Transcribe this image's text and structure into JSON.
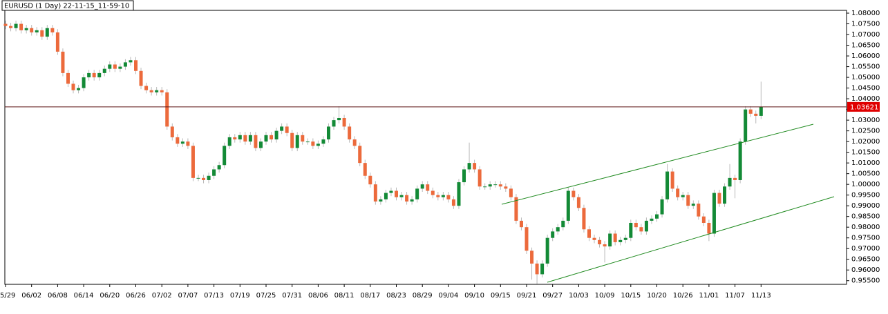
{
  "chart_data": {
    "type": "candlestick",
    "title": "EURUSD (1 Day) 22-11-15_11-59-10",
    "up_color": "#138a36",
    "down_color": "#ec6a3c",
    "wick_color": "#b8b8b8",
    "last_price": 1.03621,
    "last_price_color": "#e00000",
    "ylim": [
      0.9533,
      1.0813
    ],
    "yticks": [
      {
        "value": 0.955,
        "label": "0.95500"
      },
      {
        "value": 0.96,
        "label": "0.96000"
      },
      {
        "value": 0.965,
        "label": "0.96500"
      },
      {
        "value": 0.97,
        "label": "0.97000"
      },
      {
        "value": 0.975,
        "label": "0.97500"
      },
      {
        "value": 0.98,
        "label": "0.98000"
      },
      {
        "value": 0.985,
        "label": "0.98500"
      },
      {
        "value": 0.99,
        "label": "0.99000"
      },
      {
        "value": 0.995,
        "label": "0.99500"
      },
      {
        "value": 1.0,
        "label": "1.00000"
      },
      {
        "value": 1.005,
        "label": "1.00500"
      },
      {
        "value": 1.01,
        "label": "1.01000"
      },
      {
        "value": 1.015,
        "label": "1.01500"
      },
      {
        "value": 1.02,
        "label": "1.02000"
      },
      {
        "value": 1.025,
        "label": "1.02500"
      },
      {
        "value": 1.03,
        "label": "1.03000"
      },
      {
        "value": 1.035,
        "label": "1.03500"
      },
      {
        "value": 1.04,
        "label": "1.04000"
      },
      {
        "value": 1.045,
        "label": "1.04500"
      },
      {
        "value": 1.05,
        "label": "1.05000"
      },
      {
        "value": 1.055,
        "label": "1.05500"
      },
      {
        "value": 1.06,
        "label": "1.06000"
      },
      {
        "value": 1.065,
        "label": "1.06500"
      },
      {
        "value": 1.07,
        "label": "1.07000"
      },
      {
        "value": 1.075,
        "label": "1.07500"
      },
      {
        "value": 1.08,
        "label": "1.08000"
      }
    ],
    "categories": [
      "05/29",
      null,
      null,
      null,
      null,
      "06/02",
      null,
      null,
      null,
      null,
      "06/08",
      null,
      null,
      null,
      null,
      "06/14",
      null,
      null,
      null,
      null,
      "06/20",
      null,
      null,
      null,
      null,
      "06/26",
      null,
      null,
      null,
      null,
      "07/02",
      null,
      null,
      null,
      null,
      "07/07",
      null,
      null,
      null,
      null,
      "07/13",
      null,
      null,
      null,
      null,
      "07/19",
      null,
      null,
      null,
      null,
      "07/25",
      null,
      null,
      null,
      null,
      "07/31",
      null,
      null,
      null,
      null,
      "08/06",
      null,
      null,
      null,
      null,
      "08/11",
      null,
      null,
      null,
      null,
      "08/17",
      null,
      null,
      null,
      null,
      "08/23",
      null,
      null,
      null,
      null,
      "08/29",
      null,
      null,
      null,
      null,
      "09/04",
      null,
      null,
      null,
      null,
      "09/10",
      null,
      null,
      null,
      null,
      "09/15",
      null,
      null,
      null,
      null,
      "09/21",
      null,
      null,
      null,
      null,
      "09/27",
      null,
      null,
      null,
      null,
      "10/03",
      null,
      null,
      null,
      null,
      "10/09",
      null,
      null,
      null,
      null,
      "10/15",
      null,
      null,
      null,
      null,
      "10/20",
      null,
      null,
      null,
      null,
      "10/26",
      null,
      null,
      null,
      null,
      "11/01",
      null,
      null,
      null,
      null,
      "11/07",
      null,
      null,
      null,
      null,
      "11/13"
    ],
    "open": [
      1.075,
      1.074,
      1.073,
      1.075,
      1.072,
      1.073,
      1.071,
      1.072,
      1.069,
      1.073,
      1.071,
      1.062,
      1.052,
      1.047,
      1.044,
      1.045,
      1.05,
      1.052,
      1.05,
      1.052,
      1.054,
      1.056,
      1.054,
      1.055,
      1.057,
      1.058,
      1.053,
      1.046,
      1.044,
      1.043,
      1.044,
      1.043,
      1.027,
      1.022,
      1.019,
      1.02,
      1.018,
      1.003,
      1.003,
      1.002,
      1.004,
      1.007,
      1.009,
      1.018,
      1.022,
      1.021,
      1.023,
      1.02,
      1.023,
      1.017,
      1.02,
      1.023,
      1.021,
      1.025,
      1.027,
      1.024,
      1.017,
      1.023,
      1.02,
      1.02,
      1.018,
      1.019,
      1.021,
      1.027,
      1.03,
      1.031,
      1.027,
      1.021,
      1.018,
      1.01,
      1.004,
      1.0,
      0.992,
      0.993,
      0.996,
      0.997,
      0.994,
      0.995,
      0.992,
      0.993,
      0.998,
      1.0,
      0.997,
      0.995,
      0.994,
      0.995,
      0.993,
      0.99,
      1.001,
      1.007,
      1.01,
      1.007,
      0.999,
      0.999,
      1.0,
      1.0,
      0.999,
      0.998,
      0.994,
      0.983,
      0.98,
      0.969,
      0.963,
      0.958,
      0.963,
      0.975,
      0.978,
      0.98,
      0.983,
      0.997,
      0.994,
      0.989,
      0.979,
      0.975,
      0.974,
      0.972,
      0.971,
      0.977,
      0.973,
      0.974,
      0.975,
      0.982,
      0.98,
      0.978,
      0.983,
      0.984,
      0.986,
      0.993,
      1.006,
      0.998,
      0.994,
      0.995,
      0.99,
      0.991,
      0.985,
      0.982,
      0.977,
      0.996,
      0.991,
      0.999,
      1.003,
      1.002,
      1.02,
      1.035,
      1.033,
      1.032
    ],
    "high": [
      1.0765,
      1.0755,
      1.0765,
      1.0765,
      1.0745,
      1.0745,
      1.0735,
      1.0735,
      1.0745,
      1.0745,
      1.0725,
      1.0635,
      1.0535,
      1.0485,
      1.0465,
      1.0515,
      1.0535,
      1.0535,
      1.0535,
      1.0555,
      1.0575,
      1.0575,
      1.0565,
      1.0585,
      1.0595,
      1.0595,
      1.0545,
      1.0475,
      1.0455,
      1.0455,
      1.0455,
      1.0445,
      1.0285,
      1.0235,
      1.0215,
      1.0215,
      1.0195,
      1.0045,
      1.0045,
      1.0055,
      1.0085,
      1.0105,
      1.0195,
      1.0235,
      1.0235,
      1.0245,
      1.0245,
      1.0245,
      1.0245,
      1.0215,
      1.0245,
      1.0245,
      1.0265,
      1.0285,
      1.0285,
      1.0255,
      1.0245,
      1.0245,
      1.0215,
      1.0215,
      1.0205,
      1.0225,
      1.0285,
      1.0315,
      1.0365,
      1.0325,
      1.0285,
      1.0225,
      1.0195,
      1.0115,
      1.0055,
      1.0015,
      0.9945,
      0.9975,
      0.9985,
      0.9985,
      0.9965,
      0.9965,
      0.9945,
      0.9995,
      1.0015,
      1.0015,
      0.9985,
      0.9965,
      0.9965,
      0.9965,
      0.9945,
      1.0025,
      1.0085,
      1.0195,
      1.0115,
      1.0085,
      1.0005,
      1.0015,
      1.0015,
      1.0015,
      1.0005,
      0.9995,
      0.9955,
      0.9845,
      0.9815,
      0.9705,
      0.9645,
      0.9645,
      0.9765,
      0.9795,
      0.9815,
      0.9845,
      0.9985,
      0.9985,
      0.9955,
      0.9905,
      0.9805,
      0.9765,
      0.9755,
      0.9735,
      0.9785,
      0.9785,
      0.9755,
      0.9765,
      0.9835,
      0.9835,
      0.9815,
      0.9845,
      0.9855,
      0.9875,
      0.9945,
      1.0095,
      1.0075,
      0.9995,
      0.9965,
      0.9965,
      0.9925,
      0.9925,
      0.9865,
      0.9835,
      0.9975,
      0.9975,
      1.0005,
      1.0095,
      1.0045,
      1.0215,
      1.0365,
      1.0365,
      1.0345,
      1.048
    ],
    "low": [
      1.0725,
      1.0715,
      1.0715,
      1.0705,
      1.0705,
      1.0695,
      1.0695,
      1.0675,
      1.0675,
      1.0695,
      1.0605,
      1.0505,
      1.0455,
      1.0425,
      1.0425,
      1.0435,
      1.0485,
      1.0485,
      1.0485,
      1.0505,
      1.0525,
      1.0525,
      1.0525,
      1.0535,
      1.0555,
      1.0515,
      1.0445,
      1.0425,
      1.0415,
      1.0415,
      1.0415,
      1.0255,
      1.0205,
      1.0175,
      1.0175,
      1.0165,
      1.0015,
      1.0015,
      1.0005,
      1.0005,
      1.0025,
      1.0055,
      1.0075,
      1.0165,
      1.0195,
      1.0195,
      1.0185,
      1.0185,
      1.0155,
      1.0155,
      1.0185,
      1.0195,
      1.0195,
      1.0235,
      1.0225,
      1.0155,
      1.0155,
      1.0185,
      1.0185,
      1.0165,
      1.0165,
      1.0175,
      1.0195,
      1.0255,
      1.0285,
      1.0255,
      1.0195,
      1.0165,
      1.0085,
      1.0025,
      0.9985,
      0.9905,
      0.9905,
      0.9915,
      0.9945,
      0.9925,
      0.9925,
      0.9905,
      0.9905,
      0.9915,
      0.9965,
      0.9955,
      0.9935,
      0.9925,
      0.9925,
      0.9915,
      0.9885,
      0.9885,
      0.9995,
      1.0055,
      1.0055,
      0.9975,
      0.9975,
      0.9975,
      0.9985,
      0.9975,
      0.9965,
      0.9925,
      0.9815,
      0.9785,
      0.9675,
      0.9555,
      0.9535,
      0.9565,
      0.9615,
      0.9735,
      0.9765,
      0.9785,
      0.9815,
      0.9925,
      0.9875,
      0.9775,
      0.9735,
      0.9725,
      0.9705,
      0.9635,
      0.9695,
      0.9715,
      0.9715,
      0.9725,
      0.9735,
      0.9785,
      0.9765,
      0.9765,
      0.9815,
      0.9825,
      0.9845,
      0.9915,
      0.9965,
      0.9925,
      0.9925,
      0.9885,
      0.9885,
      0.9835,
      0.9805,
      0.9735,
      0.9755,
      0.9895,
      0.9895,
      0.9975,
      0.9935,
      1.0005,
      1.0185,
      1.0315,
      1.0285,
      1.0305
    ],
    "close": [
      1.074,
      1.073,
      1.075,
      1.072,
      1.073,
      1.071,
      1.072,
      1.069,
      1.073,
      1.071,
      1.062,
      1.052,
      1.047,
      1.044,
      1.045,
      1.05,
      1.052,
      1.05,
      1.052,
      1.054,
      1.056,
      1.054,
      1.055,
      1.057,
      1.058,
      1.053,
      1.046,
      1.044,
      1.043,
      1.044,
      1.043,
      1.027,
      1.022,
      1.019,
      1.02,
      1.018,
      1.003,
      1.003,
      1.002,
      1.004,
      1.007,
      1.009,
      1.018,
      1.022,
      1.021,
      1.023,
      1.02,
      1.023,
      1.017,
      1.02,
      1.023,
      1.021,
      1.025,
      1.027,
      1.024,
      1.017,
      1.023,
      1.02,
      1.02,
      1.018,
      1.019,
      1.021,
      1.027,
      1.03,
      1.031,
      1.027,
      1.021,
      1.018,
      1.01,
      1.004,
      1.0,
      0.992,
      0.993,
      0.996,
      0.997,
      0.994,
      0.995,
      0.992,
      0.993,
      0.998,
      1.0,
      0.997,
      0.995,
      0.994,
      0.995,
      0.993,
      0.99,
      1.001,
      1.007,
      1.01,
      1.007,
      0.999,
      0.999,
      1.0,
      1.0,
      0.999,
      0.998,
      0.994,
      0.983,
      0.98,
      0.969,
      0.963,
      0.958,
      0.963,
      0.975,
      0.978,
      0.98,
      0.983,
      0.997,
      0.994,
      0.989,
      0.979,
      0.975,
      0.974,
      0.972,
      0.971,
      0.977,
      0.973,
      0.974,
      0.975,
      0.982,
      0.98,
      0.978,
      0.983,
      0.984,
      0.986,
      0.993,
      1.006,
      0.998,
      0.994,
      0.995,
      0.99,
      0.991,
      0.985,
      0.982,
      0.977,
      0.996,
      0.991,
      0.999,
      1.003,
      1.002,
      1.02,
      1.035,
      1.033,
      1.032,
      1.03621
    ]
  }
}
